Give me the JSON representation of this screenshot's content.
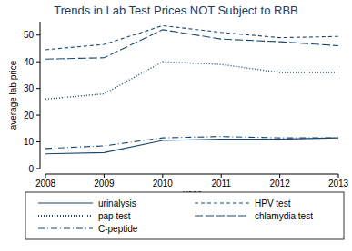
{
  "chart_data": {
    "type": "line",
    "title": "Trends in Lab Test Prices NOT Subject to RBB",
    "x_label": "year",
    "y_label": "average lab price",
    "x": [
      2008,
      2009,
      2010,
      2011,
      2012,
      2013
    ],
    "xlim": [
      2008,
      2013
    ],
    "xticks": [
      2008,
      2009,
      2010,
      2011,
      2012,
      2013
    ],
    "ylim": [
      0,
      55
    ],
    "yticks": [
      0,
      10,
      20,
      30,
      40,
      50
    ],
    "grid": false,
    "legend": "bottom",
    "series": [
      {
        "name": "urinalysis",
        "color": "#1a476f",
        "line_style": "solid",
        "values": [
          5.5,
          6,
          10.5,
          11,
          11,
          11.5
        ]
      },
      {
        "name": "HPV test",
        "color": "#1a476f",
        "line_style": "dash",
        "values": [
          44.5,
          46.5,
          53.5,
          51,
          49,
          49.5
        ]
      },
      {
        "name": "pap test",
        "color": "#1a476f",
        "line_style": "dot",
        "values": [
          26,
          28,
          40,
          39,
          36,
          36
        ]
      },
      {
        "name": "chlamydia test",
        "color": "#1a476f",
        "line_style": "longdash",
        "values": [
          41,
          41.5,
          52,
          48.5,
          47.5,
          46
        ]
      },
      {
        "name": "C-peptide",
        "color": "#1a476f",
        "line_style": "dashdot",
        "values": [
          7.5,
          8.5,
          11.5,
          12,
          11.5,
          11.5
        ]
      }
    ]
  }
}
